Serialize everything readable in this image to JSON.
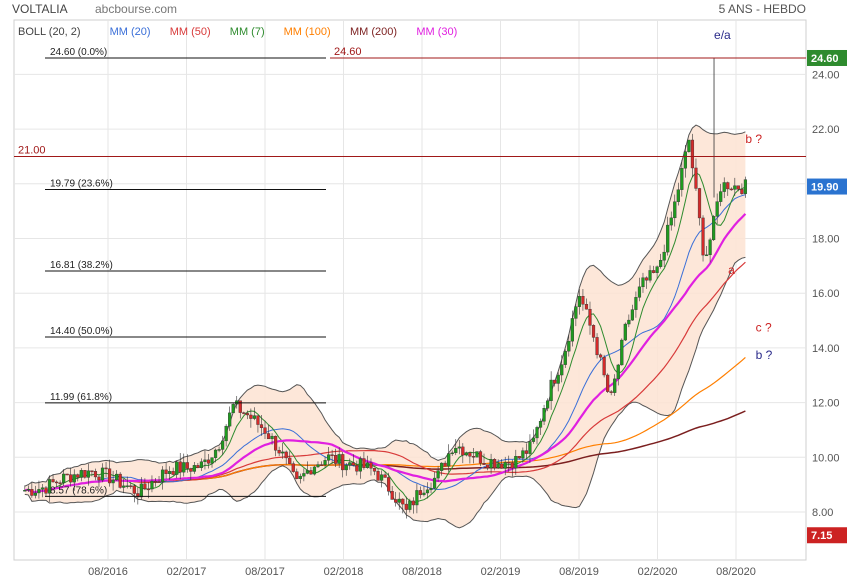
{
  "header": {
    "instrument": "VOLTALIA",
    "source": "abcbourse.com",
    "period": "5 ANS - HEBDO"
  },
  "legend": [
    {
      "label": "BOLL (20, 2)",
      "color": "#444444"
    },
    {
      "label": "MM (20)",
      "color": "#3a6fd8"
    },
    {
      "label": "MM (50)",
      "color": "#d83a3a"
    },
    {
      "label": "MM (7)",
      "color": "#2e8b2e"
    },
    {
      "label": "MM (100)",
      "color": "#ff7f00"
    },
    {
      "label": "MM (200)",
      "color": "#7b1f1f"
    },
    {
      "label": "MM (30)",
      "color": "#e020e0"
    }
  ],
  "price_tags": {
    "high": {
      "value": "24.60",
      "color": "#2e8b2e"
    },
    "last": {
      "value": "19.90",
      "color": "#2a73d0"
    },
    "low": {
      "value": "7.15",
      "color": "#cc2222"
    }
  },
  "chart_data": {
    "type": "candlestick",
    "title": "VOLTALIA",
    "period": "5 ANS - HEBDO",
    "ylim": [
      7.15,
      24.6
    ],
    "y_ticks": [
      "24.00",
      "22.00",
      "20.00",
      "18.00",
      "16.00",
      "14.00",
      "12.00",
      "10.00",
      "8.00"
    ],
    "x_ticks": [
      "08/2016",
      "02/2017",
      "08/2017",
      "02/2018",
      "08/2018",
      "02/2019",
      "08/2019",
      "02/2020",
      "08/2020"
    ],
    "grid": true,
    "fibonacci": [
      {
        "label": "24.60  (0.0%)",
        "value": 24.6
      },
      {
        "label": "19.79  (23.6%)",
        "value": 19.79
      },
      {
        "label": "16.81  (38.2%)",
        "value": 16.81
      },
      {
        "label": "14.40  (50.0%)",
        "value": 14.4
      },
      {
        "label": "11.99  (61.8%)",
        "value": 11.99
      },
      {
        "label": "8.57  (78.6%)",
        "value": 8.57
      }
    ],
    "horizontal_levels": [
      {
        "label": "24.60",
        "value": 24.6
      },
      {
        "label": "21.00",
        "value": 21.0
      }
    ],
    "annotations": [
      {
        "text": "e/a",
        "x": 7.72,
        "y": 25.3,
        "color": "#2a2a8a"
      },
      {
        "text": "b ?",
        "x": 8.12,
        "y": 21.5,
        "color": "#cc2222"
      },
      {
        "text": "a",
        "x": 7.9,
        "y": 16.7,
        "color": "#cc2222"
      },
      {
        "text": "c ?",
        "x": 8.25,
        "y": 14.6,
        "color": "#cc2222"
      },
      {
        "text": "b ?",
        "x": 8.25,
        "y": 13.6,
        "color": "#2a2a8a"
      }
    ],
    "series": [
      {
        "name": "Close",
        "x": [
          -1.0,
          -0.8,
          -0.6,
          -0.4,
          -0.2,
          0.0,
          0.2,
          0.4,
          0.6,
          0.8,
          1.0,
          1.2,
          1.4,
          1.6,
          1.8,
          2.0,
          2.2,
          2.4,
          2.6,
          2.8,
          3.0,
          3.2,
          3.4,
          3.6,
          3.8,
          4.0,
          4.2,
          4.4,
          4.6,
          4.8,
          5.0,
          5.2,
          5.4,
          5.6,
          5.8,
          6.0,
          6.2,
          6.4,
          6.6,
          6.8,
          7.0,
          7.2,
          7.4,
          7.6,
          7.7,
          7.8,
          7.9,
          8.0,
          8.1
        ],
        "values": [
          8.8,
          8.9,
          9.2,
          9.4,
          9.5,
          9.3,
          9.0,
          8.7,
          9.2,
          9.6,
          9.6,
          9.7,
          10.4,
          11.9,
          11.5,
          11.0,
          10.2,
          9.0,
          9.7,
          10.0,
          9.8,
          9.7,
          9.5,
          8.8,
          8.0,
          8.9,
          9.3,
          10.5,
          10.2,
          9.9,
          9.8,
          9.9,
          10.4,
          12.3,
          13.7,
          16.0,
          14.3,
          12.0,
          14.8,
          16.3,
          16.8,
          19.0,
          21.6,
          17.2,
          18.3,
          19.9,
          20.0,
          19.9,
          19.9
        ]
      }
    ]
  }
}
